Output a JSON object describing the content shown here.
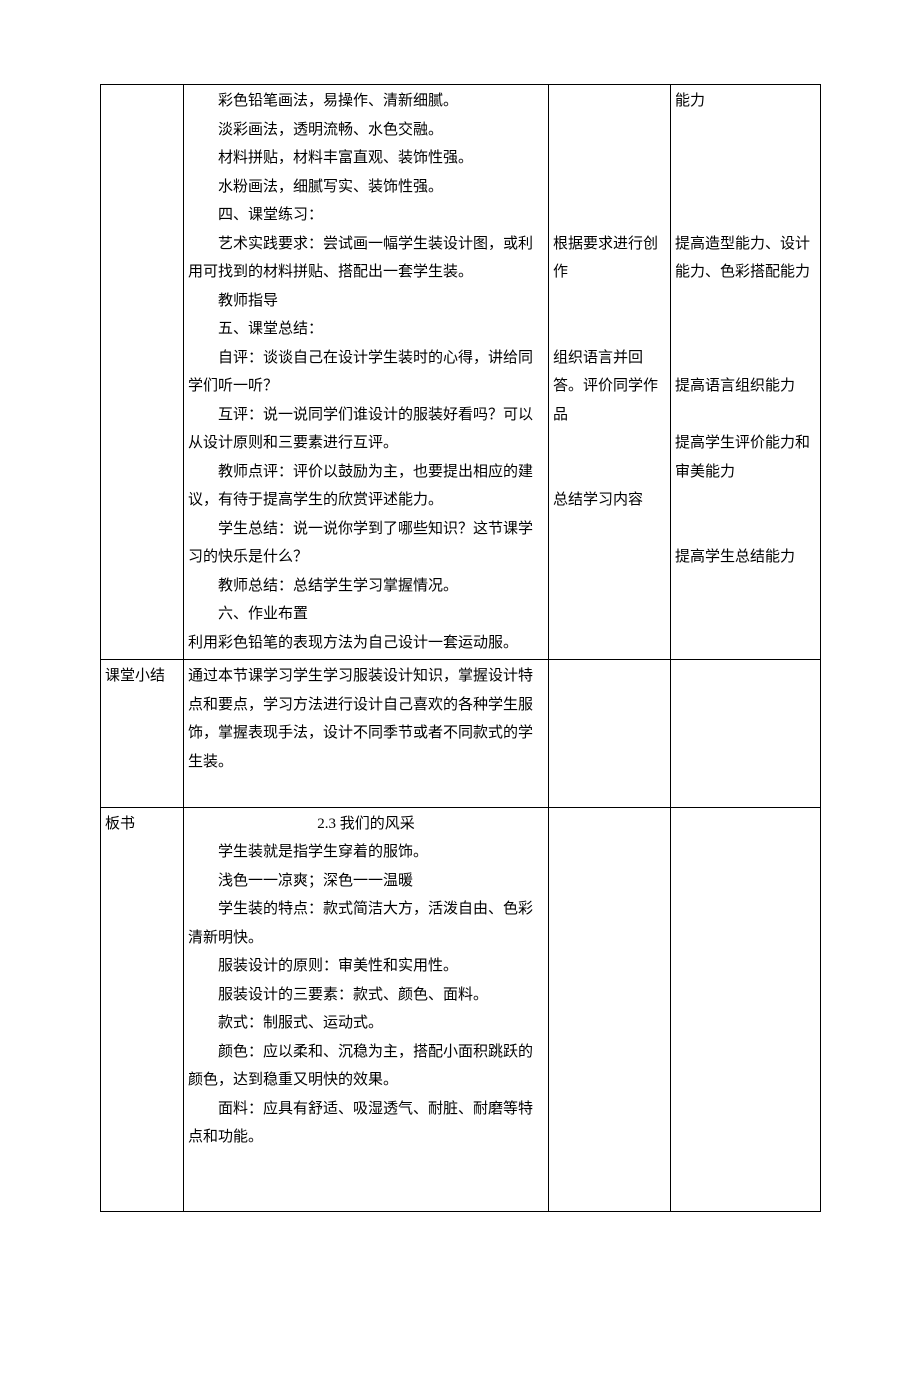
{
  "table": {
    "row1": {
      "c1": "",
      "c2": [
        {
          "t": "彩色铅笔画法，易操作、清新细腻。",
          "indent": true
        },
        {
          "t": "淡彩画法，透明流畅、水色交融。",
          "indent": true
        },
        {
          "t": "材料拼贴，材料丰富直观、装饰性强。",
          "indent": true
        },
        {
          "t": "水粉画法，细腻写实、装饰性强。",
          "indent": true
        },
        {
          "t": "四、课堂练习：",
          "indent": true
        },
        {
          "t": "艺术实践要求：尝试画一幅学生装设计图，或利用可找到的材料拼贴、搭配出一套学生装。",
          "indent": true
        },
        {
          "t": "教师指导",
          "indent": true
        },
        {
          "t": "五、课堂总结：",
          "indent": true
        },
        {
          "t": "自评：谈谈自己在设计学生装时的心得，讲给同学们听一听？",
          "indent": true
        },
        {
          "t": "互评：说一说同学们谁设计的服装好看吗？可以从设计原则和三要素进行互评。",
          "indent": true
        },
        {
          "t": "教师点评：评价以鼓励为主，也要提出相应的建议，有待于提高学生的欣赏评述能力。",
          "indent": true
        },
        {
          "t": "学生总结：说一说你学到了哪些知识？这节课学习的快乐是什么？",
          "indent": true
        },
        {
          "t": "教师总结：总结学生学习掌握情况。",
          "indent": true
        },
        {
          "t": "六、作业布置",
          "indent": true
        },
        {
          "t": "利用彩色铅笔的表现方法为自己设计一套运动服。",
          "indent": false
        }
      ],
      "c3": [
        {
          "t": " "
        },
        {
          "t": " "
        },
        {
          "t": " "
        },
        {
          "t": " "
        },
        {
          "t": " "
        },
        {
          "t": "根据要求进行创作"
        },
        {
          "t": " "
        },
        {
          "t": " "
        },
        {
          "t": "组织语言并回答。评价同学作品"
        },
        {
          "t": " "
        },
        {
          "t": " "
        },
        {
          "t": "总结学习内容"
        }
      ],
      "c4": [
        {
          "t": "能力"
        },
        {
          "t": " "
        },
        {
          "t": " "
        },
        {
          "t": " "
        },
        {
          "t": " "
        },
        {
          "t": "提高造型能力、设计能力、色彩搭配能力"
        },
        {
          "t": " "
        },
        {
          "t": " "
        },
        {
          "t": " "
        },
        {
          "t": "提高语言组织能力"
        },
        {
          "t": " "
        },
        {
          "t": "提高学生评价能力和审美能力"
        },
        {
          "t": " "
        },
        {
          "t": " "
        },
        {
          "t": "提高学生总结能力"
        }
      ]
    },
    "row2": {
      "c1": "课堂小结",
      "c2": [
        {
          "t": "通过本节课学习学生学习服装设计知识，掌握设计特点和要点，学习方法进行设计自己喜欢的各种学生服饰，掌握表现手法，设计不同季节或者不同款式的学生装。",
          "indent": false
        },
        {
          "t": " ",
          "indent": false
        }
      ],
      "c3": "",
      "c4": ""
    },
    "row3": {
      "c1": "板书",
      "c2": [
        {
          "t": "2.3 我们的风采",
          "indent": false,
          "center": true
        },
        {
          "t": "学生装就是指学生穿着的服饰。",
          "indent": true
        },
        {
          "t": "浅色一一凉爽；深色一一温暖",
          "indent": true
        },
        {
          "t": "学生装的特点：款式简洁大方，活泼自由、色彩清新明快。",
          "indent": true
        },
        {
          "t": "服装设计的原则：审美性和实用性。",
          "indent": true
        },
        {
          "t": "服装设计的三要素：款式、颜色、面料。",
          "indent": true
        },
        {
          "t": "款式：制服式、运动式。",
          "indent": true
        },
        {
          "t": "颜色：应以柔和、沉稳为主，搭配小面积跳跃的颜色，达到稳重又明快的效果。",
          "indent": true
        },
        {
          "t": "面料：应具有舒适、吸湿透气、耐脏、耐磨等特点和功能。",
          "indent": true
        },
        {
          "t": " ",
          "indent": false
        },
        {
          "t": " ",
          "indent": false
        }
      ],
      "c3": "",
      "c4": ""
    }
  }
}
